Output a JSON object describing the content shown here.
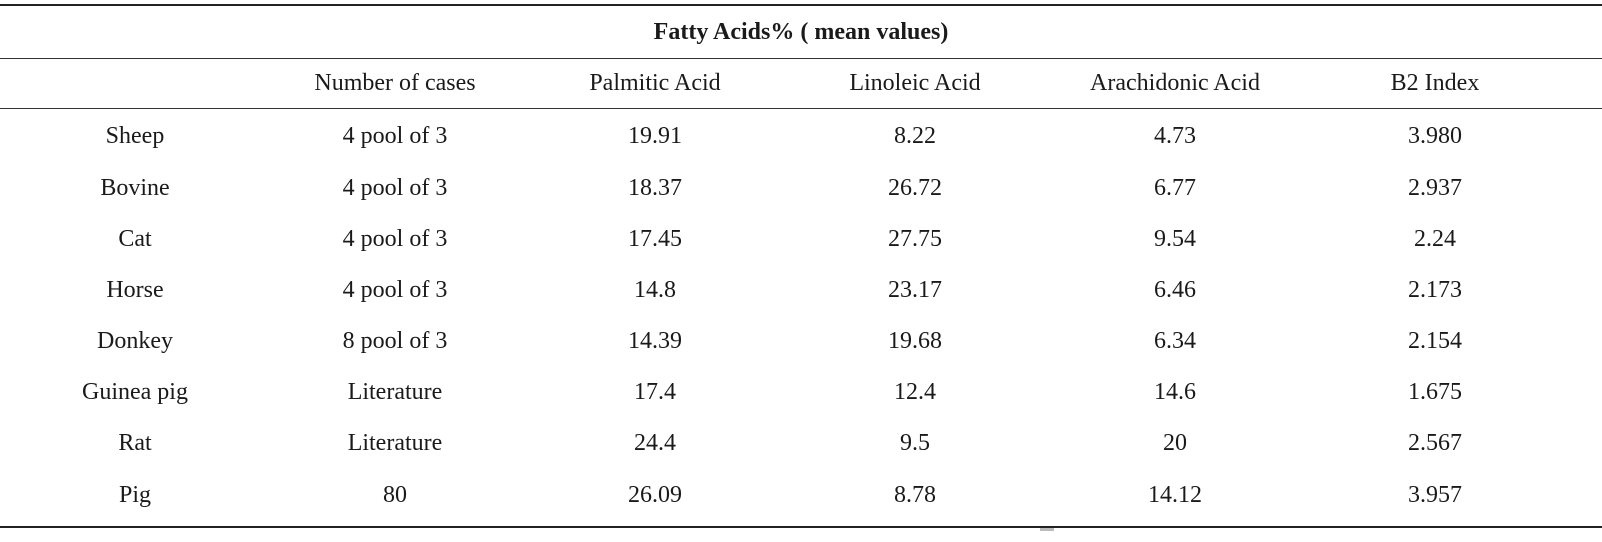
{
  "table": {
    "caption": "Fatty Acids% ( mean values)",
    "columns": [
      "",
      "Number of cases",
      "Palmitic Acid",
      "Linoleic Acid",
      "Arachidonic Acid",
      "B2 Index"
    ],
    "rows": [
      [
        "Sheep",
        "4 pool of 3",
        "19.91",
        "8.22",
        "4.73",
        "3.980"
      ],
      [
        "Bovine",
        "4 pool of 3",
        "18.37",
        "26.72",
        "6.77",
        "2.937"
      ],
      [
        "Cat",
        "4 pool of 3",
        "17.45",
        "27.75",
        "9.54",
        "2.24"
      ],
      [
        "Horse",
        "4 pool of 3",
        "14.8",
        "23.17",
        "6.46",
        "2.173"
      ],
      [
        "Donkey",
        "8 pool of 3",
        "14.39",
        "19.68",
        "6.34",
        "2.154"
      ],
      [
        "Guinea pig",
        "Literature",
        "17.4",
        "12.4",
        "14.6",
        "1.675"
      ],
      [
        "Rat",
        "Literature",
        "24.4",
        "9.5",
        "20",
        "2.567"
      ],
      [
        "Pig",
        "80",
        "26.09",
        "8.78",
        "14.12",
        "3.957"
      ]
    ]
  }
}
